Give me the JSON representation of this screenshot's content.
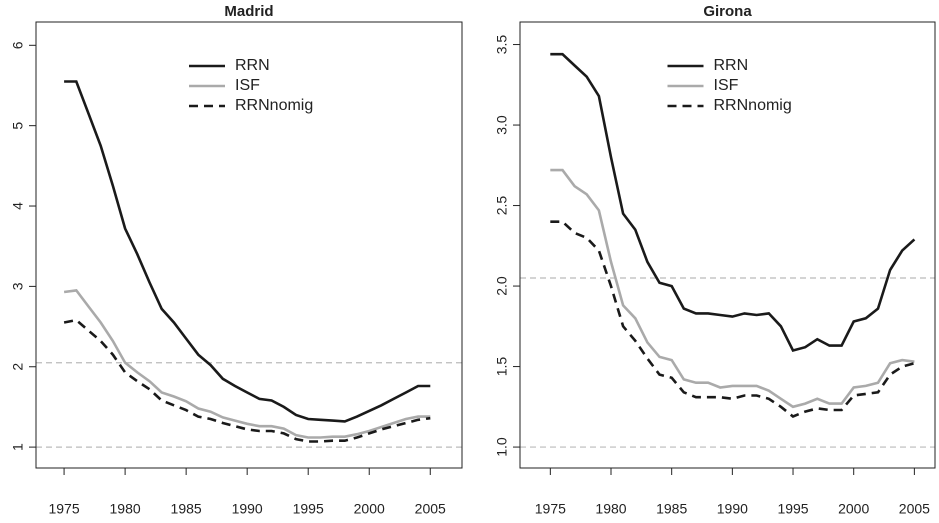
{
  "chart_data": [
    {
      "type": "line",
      "title": "Madrid",
      "x": [
        1975,
        1976,
        1977,
        1978,
        1979,
        1980,
        1981,
        1982,
        1983,
        1984,
        1985,
        1986,
        1987,
        1988,
        1989,
        1990,
        1991,
        1992,
        1993,
        1994,
        1995,
        1996,
        1997,
        1998,
        1999,
        2000,
        2001,
        2002,
        2003,
        2004,
        2005
      ],
      "series": [
        {
          "name": "RRN",
          "color": "#1a1a1a",
          "dash": "solid",
          "values": [
            5.55,
            5.55,
            5.15,
            4.75,
            4.25,
            3.72,
            3.4,
            3.05,
            2.72,
            2.55,
            2.35,
            2.15,
            2.02,
            1.85,
            1.76,
            1.68,
            1.6,
            1.58,
            1.5,
            1.4,
            1.35,
            1.34,
            1.33,
            1.32,
            1.38,
            1.45,
            1.52,
            1.6,
            1.68,
            1.76,
            1.76
          ]
        },
        {
          "name": "ISF",
          "color": "#aaaaaa",
          "dash": "solid",
          "values": [
            2.93,
            2.95,
            2.75,
            2.55,
            2.32,
            2.05,
            1.93,
            1.82,
            1.68,
            1.63,
            1.57,
            1.48,
            1.44,
            1.37,
            1.33,
            1.29,
            1.26,
            1.26,
            1.23,
            1.15,
            1.12,
            1.12,
            1.13,
            1.13,
            1.16,
            1.2,
            1.25,
            1.3,
            1.35,
            1.38,
            1.38
          ]
        },
        {
          "name": "RRNnomig",
          "color": "#1a1a1a",
          "dash": "dashed",
          "values": [
            2.55,
            2.58,
            2.45,
            2.32,
            2.15,
            1.93,
            1.82,
            1.72,
            1.58,
            1.52,
            1.46,
            1.38,
            1.35,
            1.3,
            1.26,
            1.22,
            1.2,
            1.2,
            1.17,
            1.1,
            1.07,
            1.07,
            1.08,
            1.08,
            1.12,
            1.17,
            1.22,
            1.26,
            1.3,
            1.34,
            1.36
          ]
        }
      ],
      "hlines": [
        2.05,
        1
      ],
      "xlim": [
        1972.7,
        2007.6
      ],
      "xticks": [
        1975,
        1980,
        1985,
        1990,
        1995,
        2000,
        2005
      ],
      "ylim": [
        0.74,
        6.29
      ],
      "yticks": [
        1,
        2,
        3,
        4,
        5,
        6
      ]
    },
    {
      "type": "line",
      "title": "Girona",
      "x": [
        1975,
        1976,
        1977,
        1978,
        1979,
        1980,
        1981,
        1982,
        1983,
        1984,
        1985,
        1986,
        1987,
        1988,
        1989,
        1990,
        1991,
        1992,
        1993,
        1994,
        1995,
        1996,
        1997,
        1998,
        1999,
        2000,
        2001,
        2002,
        2003,
        2004,
        2005
      ],
      "series": [
        {
          "name": "RRN",
          "color": "#1a1a1a",
          "dash": "solid",
          "values": [
            3.44,
            3.44,
            3.37,
            3.3,
            3.18,
            2.8,
            2.45,
            2.35,
            2.15,
            2.02,
            2.0,
            1.86,
            1.83,
            1.83,
            1.82,
            1.81,
            1.83,
            1.82,
            1.83,
            1.75,
            1.6,
            1.62,
            1.67,
            1.63,
            1.63,
            1.78,
            1.8,
            1.86,
            2.1,
            2.22,
            2.29
          ]
        },
        {
          "name": "ISF",
          "color": "#aaaaaa",
          "dash": "solid",
          "values": [
            2.72,
            2.72,
            2.62,
            2.57,
            2.47,
            2.15,
            1.88,
            1.8,
            1.65,
            1.56,
            1.54,
            1.42,
            1.4,
            1.4,
            1.37,
            1.38,
            1.38,
            1.38,
            1.35,
            1.3,
            1.25,
            1.27,
            1.3,
            1.27,
            1.27,
            1.37,
            1.38,
            1.4,
            1.52,
            1.54,
            1.53
          ]
        },
        {
          "name": "RRNnomig",
          "color": "#1a1a1a",
          "dash": "dashed",
          "values": [
            2.4,
            2.4,
            2.33,
            2.3,
            2.22,
            2.0,
            1.75,
            1.66,
            1.55,
            1.45,
            1.43,
            1.34,
            1.31,
            1.31,
            1.31,
            1.3,
            1.32,
            1.32,
            1.3,
            1.25,
            1.19,
            1.22,
            1.24,
            1.23,
            1.23,
            1.32,
            1.33,
            1.34,
            1.45,
            1.5,
            1.52
          ]
        }
      ],
      "hlines": [
        2.05,
        1
      ],
      "xlim": [
        1972.5,
        2006.7
      ],
      "xticks": [
        1975,
        1980,
        1985,
        1990,
        1995,
        2000,
        2005
      ],
      "ylim": [
        0.87,
        3.64
      ],
      "yticks": [
        {
          "value": 1,
          "label": "1.0"
        },
        {
          "value": 1.5,
          "label": "1.5"
        },
        {
          "value": 2,
          "label": "2.0"
        },
        {
          "value": 2.5,
          "label": "2.5"
        },
        {
          "value": 3,
          "label": "3.0"
        },
        {
          "value": 3.5,
          "label": "3.5"
        }
      ]
    }
  ]
}
